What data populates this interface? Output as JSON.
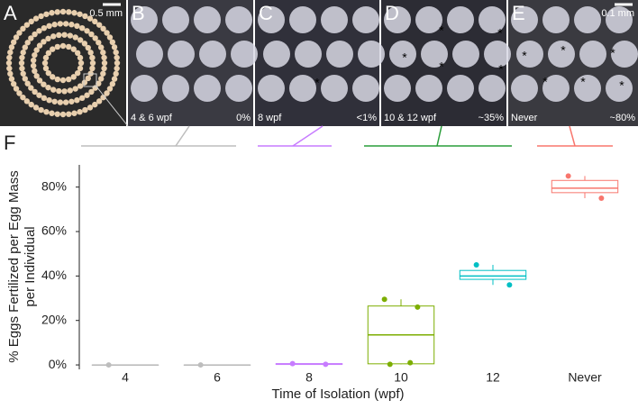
{
  "panels": [
    {
      "label": "A",
      "scale": "0.5 mm"
    },
    {
      "label": "B",
      "caption": "4 & 6 wpf",
      "percent": "0%"
    },
    {
      "label": "C",
      "caption": "8 wpf",
      "percent": "<1%"
    },
    {
      "label": "D",
      "caption": "10 & 12 wpf",
      "percent": "~35%"
    },
    {
      "label": "E",
      "caption": "Never",
      "percent": "~80%",
      "scale": "0.1 mm"
    }
  ],
  "asterisk": "*",
  "chart_data": {
    "type": "box",
    "panel_label": "F",
    "categories": [
      "4",
      "6",
      "8",
      "10",
      "12",
      "Never"
    ],
    "boxes": [
      {
        "color": "#bdbdbd",
        "whisker_low": 0,
        "q1": 0,
        "median": 0,
        "q3": 0,
        "whisker_high": 0,
        "points": [
          0
        ]
      },
      {
        "color": "#bdbdbd",
        "whisker_low": 0,
        "q1": 0,
        "median": 0,
        "q3": 0,
        "whisker_high": 0,
        "points": [
          0
        ]
      },
      {
        "color": "#c77cff",
        "whisker_low": 0.2,
        "q1": 0.2,
        "median": 0.4,
        "q3": 0.6,
        "whisker_high": 0.6,
        "points": [
          0.6,
          0.3
        ]
      },
      {
        "color": "#7cae00",
        "whisker_low": 0.3,
        "q1": 0.5,
        "median": 13.5,
        "q3": 26.5,
        "whisker_high": 29.5,
        "points": [
          29.5,
          26,
          1,
          0.3
        ]
      },
      {
        "color": "#00bfc4",
        "whisker_low": 36,
        "q1": 38.5,
        "median": 40,
        "q3": 42.5,
        "whisker_high": 45,
        "points": [
          45,
          36
        ]
      },
      {
        "color": "#f8766d",
        "whisker_low": 75,
        "q1": 77.5,
        "median": 79.5,
        "q3": 83,
        "whisker_high": 85,
        "points": [
          85,
          75
        ]
      }
    ],
    "ylim": [
      -2,
      90
    ],
    "yticks": [
      {
        "value": 0,
        "label": "0%"
      },
      {
        "value": 20,
        "label": "20%"
      },
      {
        "value": 40,
        "label": "40%"
      },
      {
        "value": 60,
        "label": "60%"
      },
      {
        "value": 80,
        "label": "80%"
      }
    ],
    "ylabel": [
      "% Eggs Fertilized per Egg Mass",
      "per Individual"
    ],
    "xlabel": "Time of Isolation (wpf)"
  }
}
